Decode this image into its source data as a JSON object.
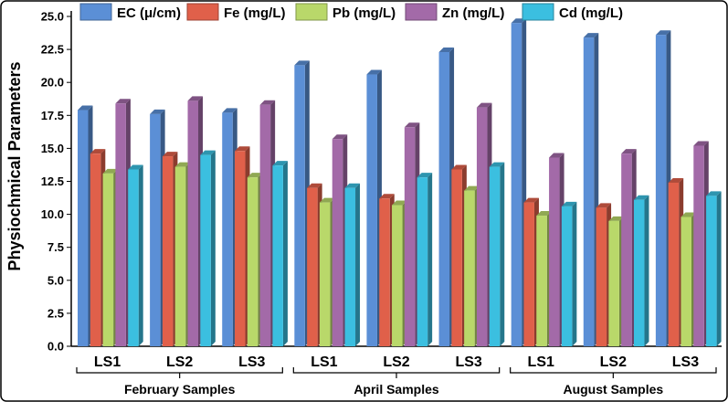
{
  "chart_data": {
    "type": "bar",
    "ylabel": "Physiochmical Parameters",
    "ylim": [
      0,
      25
    ],
    "yticks": [
      "0.0",
      "2.5",
      "5.0",
      "7.5",
      "10.0",
      "12.5",
      "15.0",
      "17.5",
      "20.0",
      "22.5",
      "25.0"
    ],
    "groups": [
      {
        "name": "February Samples",
        "categories": [
          "LS1",
          "LS2",
          "LS3"
        ]
      },
      {
        "name": "April Samples",
        "categories": [
          "LS1",
          "LS2",
          "LS3"
        ]
      },
      {
        "name": "August Samples",
        "categories": [
          "LS1",
          "LS2",
          "LS3"
        ]
      }
    ],
    "series": [
      {
        "name": "EC (μ/cm)",
        "color": "#5b8fd6",
        "values": [
          17.9,
          17.6,
          17.7,
          21.3,
          20.6,
          22.3,
          24.5,
          23.4,
          23.6
        ]
      },
      {
        "name": "Fe (mg/L)",
        "color": "#e0604a",
        "values": [
          14.6,
          14.4,
          14.8,
          12.0,
          11.2,
          13.4,
          10.9,
          10.5,
          12.4
        ]
      },
      {
        "name": "Pb (mg/L)",
        "color": "#b9d86a",
        "values": [
          13.1,
          13.6,
          12.8,
          10.9,
          10.7,
          11.8,
          9.9,
          9.5,
          9.8
        ]
      },
      {
        "name": "Zn (mg/L)",
        "color": "#a36aa8",
        "values": [
          18.4,
          18.6,
          18.3,
          15.7,
          16.6,
          18.1,
          14.3,
          14.6,
          15.2
        ]
      },
      {
        "name": "Cd (mg/L)",
        "color": "#3bbfe0",
        "values": [
          13.4,
          14.5,
          13.7,
          12.0,
          12.8,
          13.6,
          10.6,
          11.1,
          11.4
        ]
      }
    ]
  }
}
